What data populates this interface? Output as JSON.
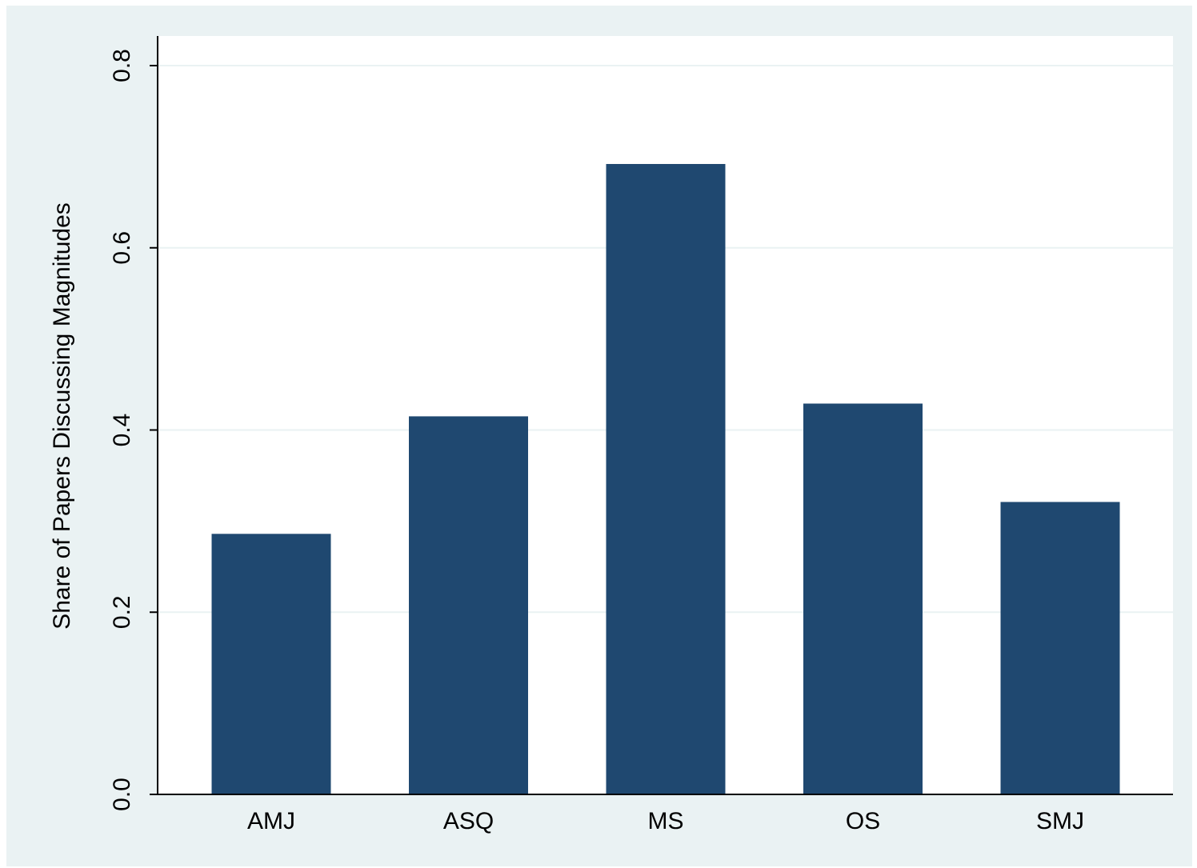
{
  "chart_data": {
    "type": "bar",
    "categories": [
      "AMJ",
      "ASQ",
      "MS",
      "OS",
      "SMJ"
    ],
    "values": [
      0.286,
      0.415,
      0.692,
      0.429,
      0.321
    ],
    "title": "",
    "xlabel": "",
    "ylabel": "Share of Papers Discussing Magnitudes",
    "ylim": [
      0,
      0.8
    ],
    "yticks": [
      0,
      0.2,
      0.4,
      0.6,
      0.8
    ],
    "ytick_labels": [
      "0.0",
      "0.2",
      "0.4",
      "0.6",
      "0.8"
    ],
    "grid": true,
    "legend": "none",
    "colors": {
      "bar": "#1f4870",
      "outer_background": "#eaf2f3",
      "plot_background": "#ffffff",
      "gridline": "#eaf2f3"
    }
  }
}
